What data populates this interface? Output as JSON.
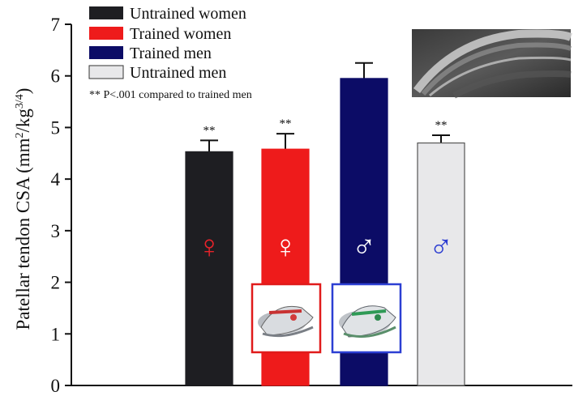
{
  "chart_data": {
    "type": "bar",
    "ylabel": "Patellar tendon CSA (mm",
    "ylabel_sup1": "2",
    "ylabel_mid": "/kg",
    "ylabel_sup2": "3/4",
    "ylabel_end": ")",
    "ylim": [
      0,
      7
    ],
    "yticks": [
      "0",
      "1",
      "2",
      "3",
      "4",
      "5",
      "6",
      "7"
    ],
    "grid": false,
    "legend_position": "top-left",
    "categories": [
      "Untrained women",
      "Trained women",
      "Trained men",
      "Untrained men"
    ],
    "values": [
      4.53,
      4.58,
      5.95,
      4.7
    ],
    "errors": [
      0.22,
      0.3,
      0.3,
      0.15
    ],
    "significance": [
      "**",
      "**",
      "",
      "**"
    ],
    "colors": [
      "#1e1e22",
      "#ee1b1b",
      "#0c0c66",
      "#e8e8ea"
    ],
    "symbols": [
      "♀",
      "♀",
      "♂",
      "♂"
    ],
    "symbol_colors": [
      "#e8232a",
      "#ffffff",
      "#ffffff",
      "#2a3bd1"
    ],
    "legend": {
      "items": [
        "Untrained women",
        "Trained women",
        "Trained men",
        "Untrained men"
      ],
      "note": "** P<.001 compared to trained men"
    },
    "inset_images": [
      {
        "name": "shoe-photo-women",
        "border_color": "#e01b1b"
      },
      {
        "name": "shoe-photo-men",
        "border_color": "#2c3fd3"
      },
      {
        "name": "mri-tendon-image",
        "border_color": "#ffffff"
      }
    ]
  }
}
